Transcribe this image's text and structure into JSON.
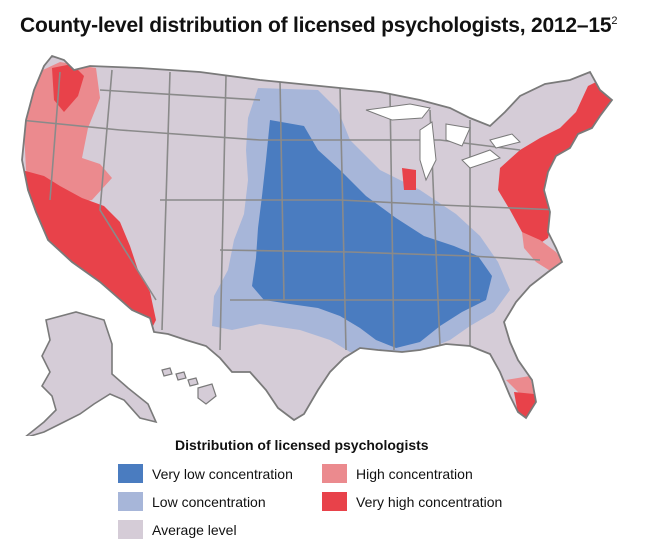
{
  "title": {
    "text": "County-level distribution of licensed psychologists, 2012–15",
    "footnote": "2"
  },
  "legend": {
    "title": "Distribution of licensed psychologists",
    "items": [
      {
        "key": "very_low",
        "label": "Very low concentration",
        "color": "#4a7cc0"
      },
      {
        "key": "low",
        "label": "Low concentration",
        "color": "#a7b6d9"
      },
      {
        "key": "average",
        "label": "Average level",
        "color": "#d5ccd7"
      },
      {
        "key": "high",
        "label": "High concentration",
        "color": "#eb8a8e"
      },
      {
        "key": "very_high",
        "label": "Very high concentration",
        "color": "#e8424a"
      }
    ]
  },
  "map": {
    "regions": [
      {
        "name": "Pacific Northwest coast (Seattle/Portland)",
        "level": "very_high"
      },
      {
        "name": "Western Washington/Oregon",
        "level": "high"
      },
      {
        "name": "Northern California coast",
        "level": "high"
      },
      {
        "name": "California and southern Nevada",
        "level": "very_high"
      },
      {
        "name": "Great Plains, Texas panhandle to Dakotas",
        "level": "low"
      },
      {
        "name": "Central Plains, Midwest and Mid-South",
        "level": "very_low"
      },
      {
        "name": "Chicago area",
        "level": "very_high"
      },
      {
        "name": "Northeast and Mid-Atlantic",
        "level": "very_high"
      },
      {
        "name": "Coastal Virginia/North Carolina",
        "level": "high"
      },
      {
        "name": "South Florida",
        "level": "very_high"
      },
      {
        "name": "Alaska, Hawaii and remaining areas",
        "level": "average"
      }
    ]
  }
}
